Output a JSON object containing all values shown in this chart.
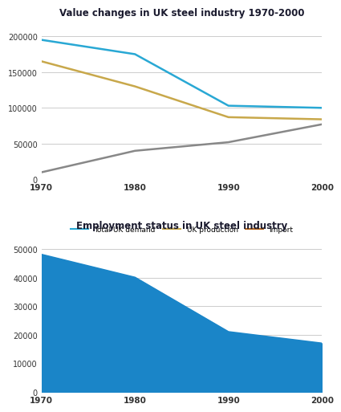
{
  "chart1_title": "Value changes in UK steel industry 1970-2000",
  "chart2_title": "Employment status in UK steel industry",
  "years": [
    1970,
    1980,
    1990,
    2000
  ],
  "total_uk_demand": [
    195000,
    175000,
    103000,
    100000
  ],
  "uk_production": [
    165000,
    130000,
    87000,
    84000
  ],
  "import": [
    10000,
    40000,
    52000,
    77000
  ],
  "employment": [
    48000,
    40000,
    21000,
    17000
  ],
  "line1_color": "#29a8d4",
  "line2_color": "#c8a84b",
  "line3_color": "#b5651d",
  "import_line_color": "#888888",
  "fill_color": "#1a85c8",
  "background_color": "#ffffff",
  "chart1_ylim": [
    0,
    220000
  ],
  "chart1_yticks": [
    0,
    50000,
    100000,
    150000,
    200000
  ],
  "chart2_ylim": [
    0,
    55000
  ],
  "chart2_yticks": [
    0,
    10000,
    20000,
    30000,
    40000,
    50000
  ],
  "legend_labels": [
    "Total UK demand",
    "UK production",
    "Import"
  ],
  "title_color": "#1a1a2e",
  "tick_color": "#333333",
  "grid_color": "#cccccc"
}
